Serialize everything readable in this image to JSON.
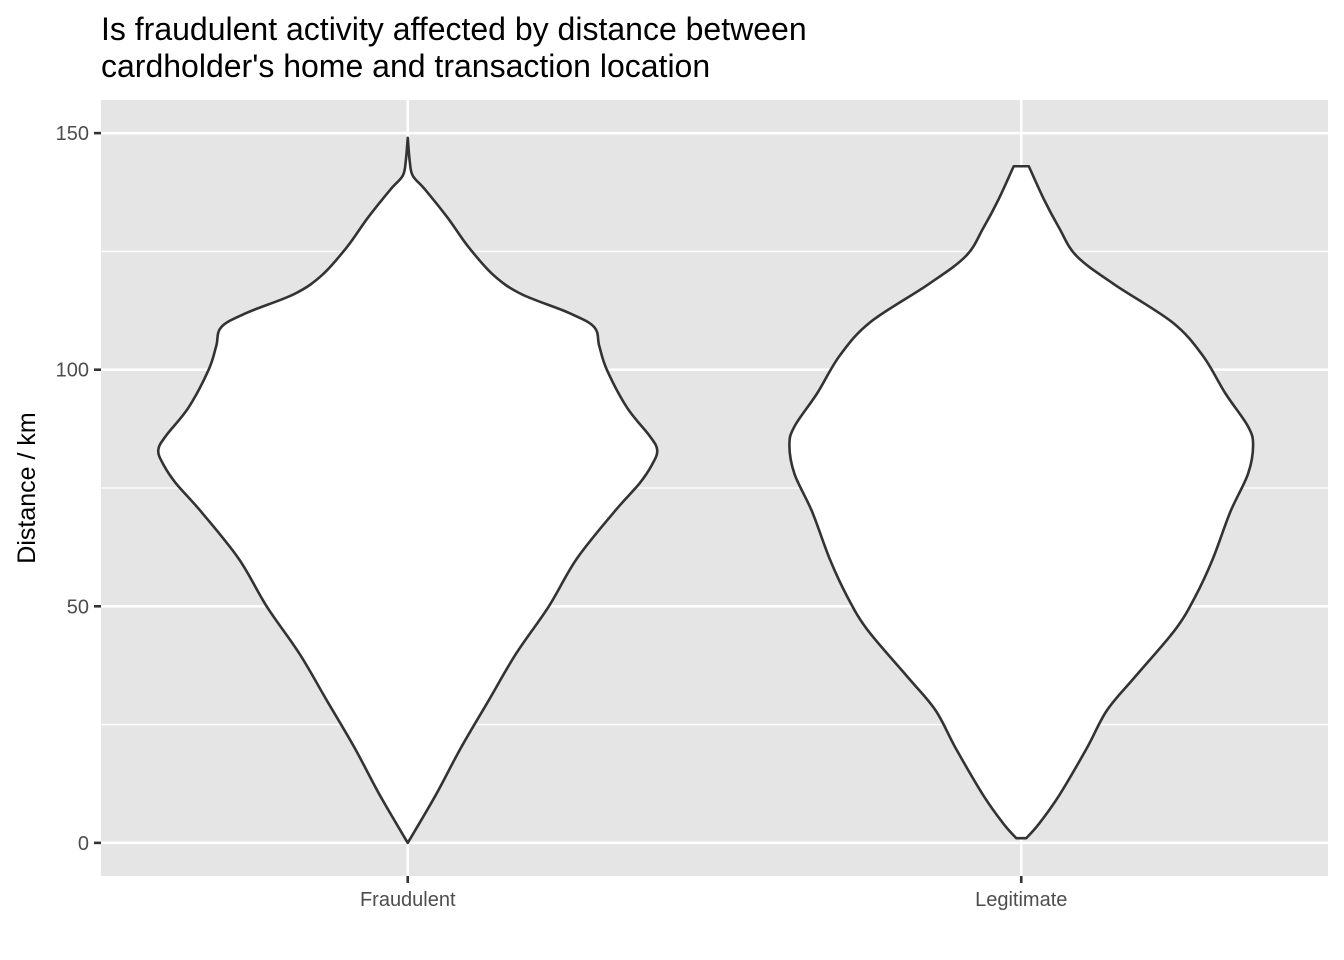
{
  "chart_data": {
    "type": "violin",
    "title": "Is fraudulent activity affected by distance between cardholder's home and transaction location",
    "title_lines": [
      "Is fraudulent activity affected by distance between",
      "cardholder's home and transaction location"
    ],
    "xlabel": "",
    "ylabel": "Distance / km",
    "ylim": [
      -7,
      157
    ],
    "yticks": [
      0,
      50,
      100,
      150
    ],
    "ytick_labels": [
      "0",
      "50",
      "100",
      "150"
    ],
    "categories": [
      "Fraudulent",
      "Legitimate"
    ],
    "grid": true,
    "legend": "none",
    "colors": {
      "panel": "#e5e5e5",
      "grid": "#ffffff",
      "fill": "#ffffff",
      "outline": "#333333"
    },
    "series": [
      {
        "category": "Fraudulent",
        "density": [
          [
            0,
            0.0
          ],
          [
            10,
            0.11
          ],
          [
            20,
            0.21
          ],
          [
            30,
            0.32
          ],
          [
            40,
            0.43
          ],
          [
            50,
            0.56
          ],
          [
            60,
            0.67
          ],
          [
            70,
            0.82
          ],
          [
            76,
            0.92
          ],
          [
            80,
            0.97
          ],
          [
            83,
            0.99
          ],
          [
            86,
            0.96
          ],
          [
            92,
            0.87
          ],
          [
            100,
            0.79
          ],
          [
            105,
            0.76
          ],
          [
            109,
            0.74
          ],
          [
            112,
            0.64
          ],
          [
            116,
            0.45
          ],
          [
            120,
            0.34
          ],
          [
            126,
            0.24
          ],
          [
            132,
            0.16
          ],
          [
            138,
            0.07
          ],
          [
            141,
            0.02
          ],
          [
            144,
            0.008
          ],
          [
            149,
            0.0
          ]
        ]
      },
      {
        "category": "Legitimate",
        "density": [
          [
            1,
            0.02
          ],
          [
            4,
            0.07
          ],
          [
            10,
            0.15
          ],
          [
            20,
            0.26
          ],
          [
            28,
            0.34
          ],
          [
            35,
            0.45
          ],
          [
            45,
            0.61
          ],
          [
            52,
            0.69
          ],
          [
            60,
            0.76
          ],
          [
            70,
            0.83
          ],
          [
            78,
            0.9
          ],
          [
            84,
            0.92
          ],
          [
            88,
            0.9
          ],
          [
            95,
            0.81
          ],
          [
            103,
            0.72
          ],
          [
            110,
            0.6
          ],
          [
            118,
            0.37
          ],
          [
            124,
            0.22
          ],
          [
            130,
            0.15
          ],
          [
            136,
            0.09
          ],
          [
            143,
            0.03
          ]
        ]
      }
    ]
  }
}
